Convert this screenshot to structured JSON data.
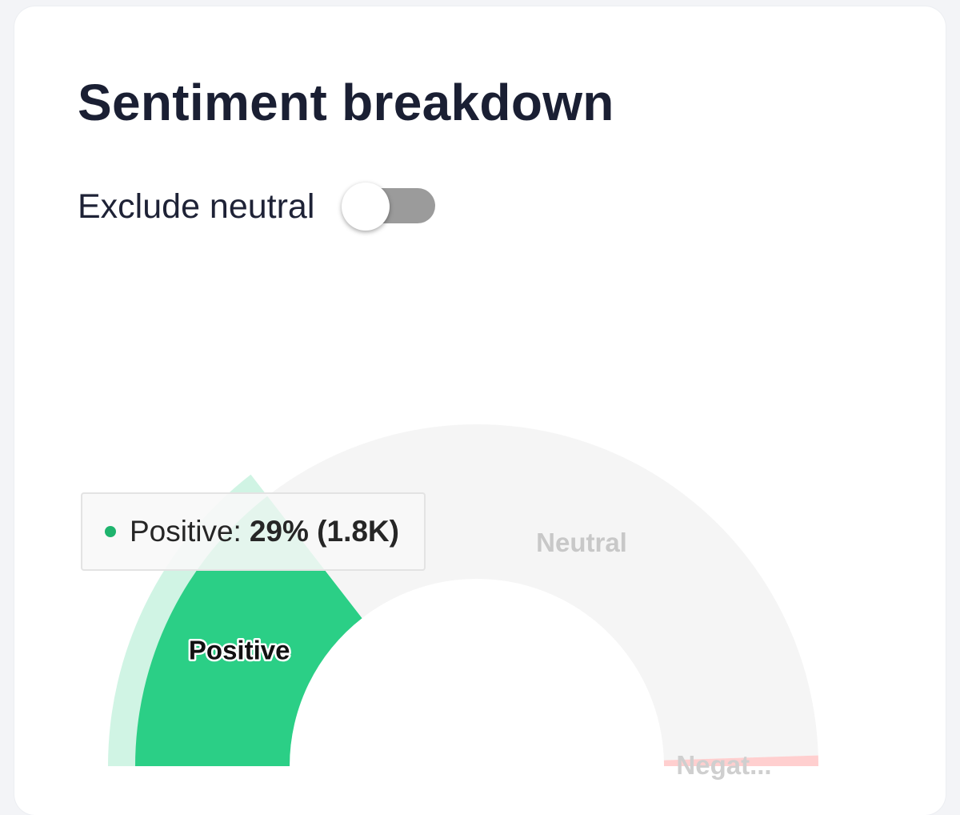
{
  "card": {
    "title": "Sentiment breakdown"
  },
  "toggle": {
    "label": "Exclude neutral",
    "on": false
  },
  "tooltip": {
    "series": "Positive:",
    "value": "29% (1.8K)",
    "color": "#1fb46e"
  },
  "chart_data": {
    "type": "pie",
    "variant": "half-donut",
    "legend": "none",
    "slices": [
      {
        "name": "Positive",
        "label": "Positive",
        "percent": 29,
        "count": "1.8K",
        "color": "#2bcf86",
        "highlighted": true
      },
      {
        "name": "Neutral",
        "label": "Neutral",
        "percent": 70,
        "color": "#f5f5f5",
        "highlighted": false
      },
      {
        "name": "Negative",
        "label": "Negat...",
        "percent": 1,
        "color": "#ffcfcf",
        "highlighted": false
      }
    ]
  }
}
